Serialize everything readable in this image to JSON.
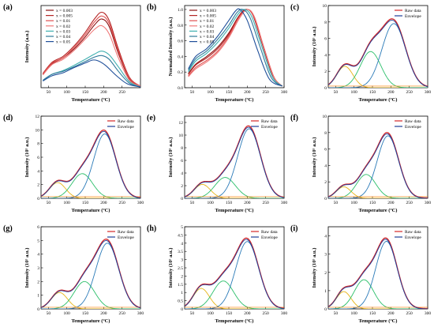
{
  "colors": {
    "x_0003": "#8b1010",
    "x_0005": "#b42525",
    "x_001": "#e05050",
    "x_002": "#f07878",
    "x_003": "#3fb0b0",
    "x_004": "#2f7a9a",
    "x_005": "#1f4f9a",
    "raw": "#d62728",
    "envelope": "#1f3f9a",
    "peak1": "#e7b416",
    "peak2": "#2bbf6a",
    "peak3": "#2a7ab8",
    "baseline": "#ff7f00"
  },
  "chart_data": [
    {
      "id": "a",
      "letter": "(a)",
      "type": "line",
      "xlabel": "Temperature (ºC)",
      "ylabel": "Intensity (a.u.)",
      "xlim": [
        30,
        300
      ],
      "ylim": [
        0,
        1.1
      ],
      "xticks": [
        50,
        100,
        150,
        200,
        250
      ],
      "yticks": [],
      "legend": "top-left",
      "series": [
        {
          "name": "x = 0.003",
          "color_key": "x_0003",
          "points": [
            [
              35,
              0.18
            ],
            [
              60,
              0.32
            ],
            [
              90,
              0.4
            ],
            [
              120,
              0.52
            ],
            [
              150,
              0.68
            ],
            [
              175,
              0.84
            ],
            [
              195,
              0.92
            ],
            [
              215,
              0.82
            ],
            [
              240,
              0.46
            ],
            [
              270,
              0.12
            ],
            [
              300,
              0.02
            ]
          ]
        },
        {
          "name": "x = 0.005",
          "color_key": "x_0005",
          "points": [
            [
              35,
              0.19
            ],
            [
              60,
              0.34
            ],
            [
              90,
              0.42
            ],
            [
              120,
              0.56
            ],
            [
              150,
              0.74
            ],
            [
              175,
              0.92
            ],
            [
              195,
              1.01
            ],
            [
              215,
              0.9
            ],
            [
              240,
              0.52
            ],
            [
              270,
              0.14
            ],
            [
              300,
              0.02
            ]
          ]
        },
        {
          "name": "x = 0.01",
          "color_key": "x_001",
          "points": [
            [
              35,
              0.18
            ],
            [
              60,
              0.33
            ],
            [
              90,
              0.4
            ],
            [
              120,
              0.54
            ],
            [
              150,
              0.71
            ],
            [
              175,
              0.88
            ],
            [
              195,
              0.96
            ],
            [
              215,
              0.86
            ],
            [
              240,
              0.49
            ],
            [
              270,
              0.13
            ],
            [
              300,
              0.02
            ]
          ]
        },
        {
          "name": "x = 0.02",
          "color_key": "x_002",
          "points": [
            [
              35,
              0.17
            ],
            [
              60,
              0.31
            ],
            [
              90,
              0.38
            ],
            [
              120,
              0.5
            ],
            [
              150,
              0.65
            ],
            [
              175,
              0.78
            ],
            [
              195,
              0.83
            ],
            [
              215,
              0.72
            ],
            [
              240,
              0.4
            ],
            [
              270,
              0.1
            ],
            [
              300,
              0.02
            ]
          ]
        },
        {
          "name": "x = 0.03",
          "color_key": "x_003",
          "points": [
            [
              35,
              0.1
            ],
            [
              60,
              0.18
            ],
            [
              90,
              0.23
            ],
            [
              120,
              0.3
            ],
            [
              150,
              0.38
            ],
            [
              175,
              0.45
            ],
            [
              195,
              0.49
            ],
            [
              215,
              0.44
            ],
            [
              240,
              0.28
            ],
            [
              270,
              0.08
            ],
            [
              300,
              0.01
            ]
          ]
        },
        {
          "name": "x = 0.04",
          "color_key": "x_004",
          "points": [
            [
              35,
              0.1
            ],
            [
              60,
              0.18
            ],
            [
              90,
              0.22
            ],
            [
              120,
              0.28
            ],
            [
              150,
              0.35
            ],
            [
              175,
              0.41
            ],
            [
              195,
              0.43
            ],
            [
              215,
              0.38
            ],
            [
              240,
              0.22
            ],
            [
              270,
              0.06
            ],
            [
              300,
              0.01
            ]
          ]
        },
        {
          "name": "x = 0.05",
          "color_key": "x_005",
          "points": [
            [
              35,
              0.09
            ],
            [
              60,
              0.16
            ],
            [
              90,
              0.2
            ],
            [
              120,
              0.27
            ],
            [
              150,
              0.33
            ],
            [
              170,
              0.37
            ],
            [
              185,
              0.36
            ],
            [
              205,
              0.3
            ],
            [
              235,
              0.16
            ],
            [
              265,
              0.05
            ],
            [
              300,
              0.01
            ]
          ]
        }
      ]
    },
    {
      "id": "b",
      "letter": "(b)",
      "type": "line",
      "xlabel": "Temperature (ºC)",
      "ylabel": "Normalized Intensity (a.u.)",
      "xlim": [
        30,
        300
      ],
      "ylim": [
        0,
        1.05
      ],
      "xticks": [
        50,
        100,
        150,
        200,
        250,
        300
      ],
      "yticks": [
        0.0,
        0.2,
        0.4,
        0.6,
        0.8,
        1.0
      ],
      "legend": "top-left",
      "series": [
        {
          "name": "x = 0.003",
          "color_key": "x_0003",
          "points": [
            [
              40,
              0.18
            ],
            [
              60,
              0.3
            ],
            [
              90,
              0.4
            ],
            [
              120,
              0.52
            ],
            [
              150,
              0.7
            ],
            [
              175,
              0.9
            ],
            [
              195,
              1.0
            ],
            [
              215,
              0.93
            ],
            [
              240,
              0.57
            ],
            [
              270,
              0.15
            ],
            [
              295,
              0.02
            ]
          ]
        },
        {
          "name": "x = 0.005",
          "color_key": "x_0005",
          "points": [
            [
              40,
              0.17
            ],
            [
              60,
              0.29
            ],
            [
              90,
              0.38
            ],
            [
              120,
              0.5
            ],
            [
              150,
              0.68
            ],
            [
              175,
              0.89
            ],
            [
              197,
              1.0
            ],
            [
              217,
              0.92
            ],
            [
              242,
              0.56
            ],
            [
              272,
              0.14
            ],
            [
              295,
              0.02
            ]
          ]
        },
        {
          "name": "x = 0.01",
          "color_key": "x_001",
          "points": [
            [
              40,
              0.15
            ],
            [
              60,
              0.26
            ],
            [
              90,
              0.35
            ],
            [
              120,
              0.47
            ],
            [
              150,
              0.66
            ],
            [
              175,
              0.88
            ],
            [
              198,
              1.0
            ],
            [
              218,
              0.91
            ],
            [
              243,
              0.54
            ],
            [
              272,
              0.14
            ],
            [
              295,
              0.02
            ]
          ]
        },
        {
          "name": "x = 0.02",
          "color_key": "x_002",
          "points": [
            [
              40,
              0.14
            ],
            [
              60,
              0.24
            ],
            [
              90,
              0.33
            ],
            [
              120,
              0.45
            ],
            [
              150,
              0.64
            ],
            [
              178,
              0.88
            ],
            [
              200,
              1.0
            ],
            [
              220,
              0.9
            ],
            [
              245,
              0.52
            ],
            [
              273,
              0.13
            ],
            [
              295,
              0.02
            ]
          ]
        },
        {
          "name": "x = 0.03",
          "color_key": "x_003",
          "points": [
            [
              40,
              0.2
            ],
            [
              60,
              0.34
            ],
            [
              90,
              0.44
            ],
            [
              120,
              0.58
            ],
            [
              150,
              0.76
            ],
            [
              175,
              0.94
            ],
            [
              192,
              1.0
            ],
            [
              212,
              0.91
            ],
            [
              238,
              0.55
            ],
            [
              268,
              0.14
            ],
            [
              295,
              0.02
            ]
          ]
        },
        {
          "name": "x = 0.04",
          "color_key": "x_004",
          "points": [
            [
              40,
              0.22
            ],
            [
              60,
              0.37
            ],
            [
              90,
              0.47
            ],
            [
              120,
              0.62
            ],
            [
              150,
              0.8
            ],
            [
              172,
              0.96
            ],
            [
              188,
              1.0
            ],
            [
              208,
              0.89
            ],
            [
              235,
              0.52
            ],
            [
              265,
              0.13
            ],
            [
              295,
              0.02
            ]
          ]
        },
        {
          "name": "x = 0.05",
          "color_key": "x_005",
          "points": [
            [
              40,
              0.24
            ],
            [
              60,
              0.4
            ],
            [
              90,
              0.5
            ],
            [
              120,
              0.66
            ],
            [
              150,
              0.86
            ],
            [
              168,
              0.98
            ],
            [
              180,
              1.0
            ],
            [
              200,
              0.86
            ],
            [
              228,
              0.48
            ],
            [
              260,
              0.11
            ],
            [
              295,
              0.02
            ]
          ]
        }
      ]
    },
    {
      "id": "c",
      "letter": "(c)",
      "type": "line",
      "xlabel": "Temperature (ºC)",
      "ylabel": "Intensity (10⁵ a.u.)",
      "xlim": [
        30,
        300
      ],
      "ylim": [
        0,
        10
      ],
      "xticks": [
        50,
        100,
        150,
        200,
        250,
        300
      ],
      "yticks": [
        0,
        2,
        4,
        6,
        8,
        10
      ],
      "legend": "top-right",
      "legend_raw": "Raw data",
      "legend_env": "Envelope",
      "peaks": [
        {
          "center": 75,
          "height": 2.6,
          "width": 22
        },
        {
          "center": 145,
          "height": 4.4,
          "width": 28
        },
        {
          "center": 208,
          "height": 7.8,
          "width": 32
        }
      ]
    },
    {
      "id": "d",
      "letter": "(d)",
      "type": "line",
      "xlabel": "Temperature (ºC)",
      "ylabel": "Intensity (10⁵ a.u.)",
      "xlim": [
        30,
        300
      ],
      "ylim": [
        0,
        12
      ],
      "xticks": [
        50,
        100,
        150,
        200,
        250,
        300
      ],
      "yticks": [
        0,
        2,
        4,
        6,
        8,
        10,
        12
      ],
      "legend": "top-right",
      "legend_raw": "Raw data",
      "legend_env": "Envelope",
      "peaks": [
        {
          "center": 75,
          "height": 2.3,
          "width": 22
        },
        {
          "center": 142,
          "height": 3.6,
          "width": 28
        },
        {
          "center": 203,
          "height": 9.4,
          "width": 30
        }
      ]
    },
    {
      "id": "e",
      "letter": "(e)",
      "type": "line",
      "xlabel": "Temperature (ºC)",
      "ylabel": "Intensity (10⁵ a.u.)",
      "xlim": [
        30,
        300
      ],
      "ylim": [
        0,
        13
      ],
      "xticks": [
        50,
        100,
        150,
        200,
        250,
        300
      ],
      "yticks": [
        0,
        2,
        4,
        6,
        8,
        10,
        12
      ],
      "legend": "top-right",
      "legend_raw": "Raw data",
      "legend_env": "Envelope",
      "peaks": [
        {
          "center": 78,
          "height": 2.2,
          "width": 22
        },
        {
          "center": 140,
          "height": 3.3,
          "width": 28
        },
        {
          "center": 205,
          "height": 11.0,
          "width": 31
        }
      ]
    },
    {
      "id": "f",
      "letter": "(f)",
      "type": "line",
      "xlabel": "Temperature (ºC)",
      "ylabel": "Intensity (10⁵ a.u.)",
      "xlim": [
        30,
        300
      ],
      "ylim": [
        0,
        10
      ],
      "xticks": [
        50,
        100,
        150,
        200,
        250,
        300
      ],
      "yticks": [
        0,
        2,
        4,
        6,
        8,
        10
      ],
      "legend": "top-right",
      "legend_raw": "Raw data",
      "legend_env": "Envelope",
      "peaks": [
        {
          "center": 72,
          "height": 1.4,
          "width": 20
        },
        {
          "center": 133,
          "height": 2.9,
          "width": 26
        },
        {
          "center": 192,
          "height": 7.6,
          "width": 29
        }
      ]
    },
    {
      "id": "g",
      "letter": "(g)",
      "type": "line",
      "xlabel": "Temperature (ºC)",
      "ylabel": "Intensity (10⁵ a.u.)",
      "xlim": [
        30,
        300
      ],
      "ylim": [
        0,
        6
      ],
      "xticks": [
        50,
        100,
        150,
        200,
        250,
        300
      ],
      "yticks": [
        0,
        1,
        2,
        3,
        4,
        5,
        6
      ],
      "legend": "top-right",
      "legend_raw": "Raw data",
      "legend_env": "Envelope",
      "peaks": [
        {
          "center": 80,
          "height": 1.2,
          "width": 22
        },
        {
          "center": 148,
          "height": 2.0,
          "width": 28
        },
        {
          "center": 210,
          "height": 4.8,
          "width": 31
        }
      ]
    },
    {
      "id": "h",
      "letter": "(h)",
      "type": "line",
      "xlabel": "Temperature (ºC)",
      "ylabel": "Intensity (10⁵ a.u.)",
      "xlim": [
        30,
        300
      ],
      "ylim": [
        0,
        5
      ],
      "xticks": [
        50,
        100,
        150,
        200,
        250,
        300
      ],
      "yticks": [
        0.0,
        0.5,
        1.0,
        1.5,
        2.0,
        2.5,
        3.0,
        3.5,
        4.0,
        4.5,
        5.0
      ],
      "legend": "top-right",
      "legend_raw": "Raw data",
      "legend_env": "Envelope",
      "peaks": [
        {
          "center": 75,
          "height": 1.25,
          "width": 22
        },
        {
          "center": 135,
          "height": 1.7,
          "width": 28
        },
        {
          "center": 200,
          "height": 4.1,
          "width": 31
        }
      ]
    },
    {
      "id": "i",
      "letter": "(i)",
      "type": "line",
      "xlabel": "Temperature (ºC)",
      "ylabel": "Intensity (10⁵ a.u.)",
      "xlim": [
        30,
        300
      ],
      "ylim": [
        0,
        4.5
      ],
      "xticks": [
        50,
        100,
        150,
        200,
        250,
        300
      ],
      "yticks": [
        0,
        1,
        2,
        3,
        4
      ],
      "legend": "top-right",
      "legend_raw": "Raw data",
      "legend_env": "Envelope",
      "peaks": [
        {
          "center": 72,
          "height": 0.95,
          "width": 20
        },
        {
          "center": 127,
          "height": 1.6,
          "width": 26
        },
        {
          "center": 188,
          "height": 3.7,
          "width": 29
        }
      ]
    }
  ]
}
